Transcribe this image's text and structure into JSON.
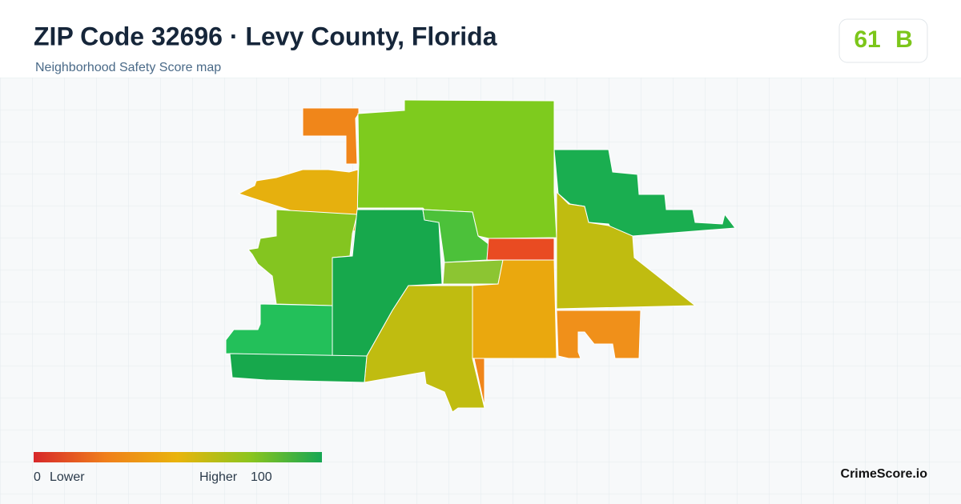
{
  "header": {
    "title": "ZIP Code 32696 · Levy County, Florida",
    "subtitle": "Neighborhood Safety Score map"
  },
  "score": {
    "value": "61",
    "grade": "B"
  },
  "legend": {
    "min": "0",
    "min_label": "Lower",
    "max_label": "Higher",
    "max": "100"
  },
  "brand": "CrimeScore.io"
}
